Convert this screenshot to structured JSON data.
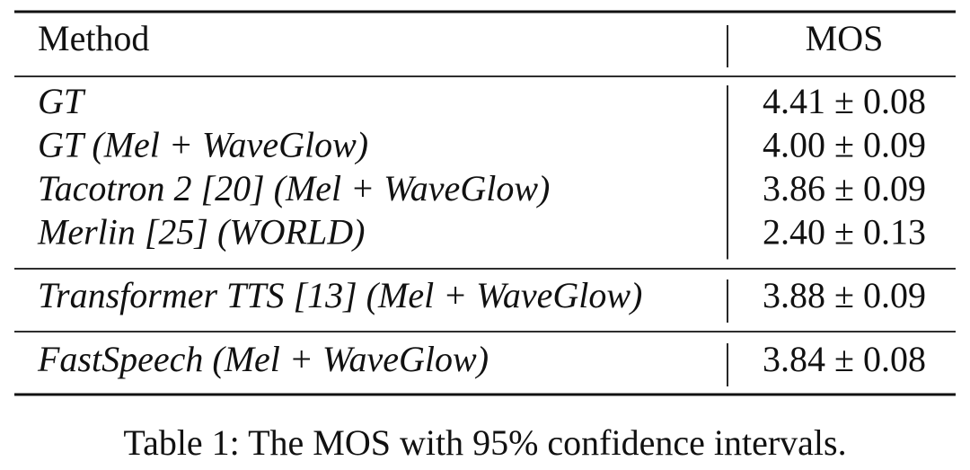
{
  "table": {
    "header": [
      "Method",
      "MOS"
    ],
    "groups": [
      [
        {
          "method": "GT",
          "mos": "4.41 ± 0.08"
        },
        {
          "method": "GT (Mel + WaveGlow)",
          "mos": "4.00 ± 0.09"
        },
        {
          "method": "Tacotron 2 [20] (Mel + WaveGlow)",
          "mos": "3.86 ± 0.09"
        },
        {
          "method": "Merlin [25] (WORLD)",
          "mos": "2.40 ± 0.13"
        }
      ],
      [
        {
          "method": "Transformer TTS [13] (Mel + WaveGlow)",
          "mos": "3.88 ± 0.09"
        }
      ],
      [
        {
          "method": "FastSpeech (Mel + WaveGlow)",
          "mos": "3.84 ± 0.08"
        }
      ]
    ]
  },
  "caption": "Table 1: The MOS with 95% confidence intervals."
}
